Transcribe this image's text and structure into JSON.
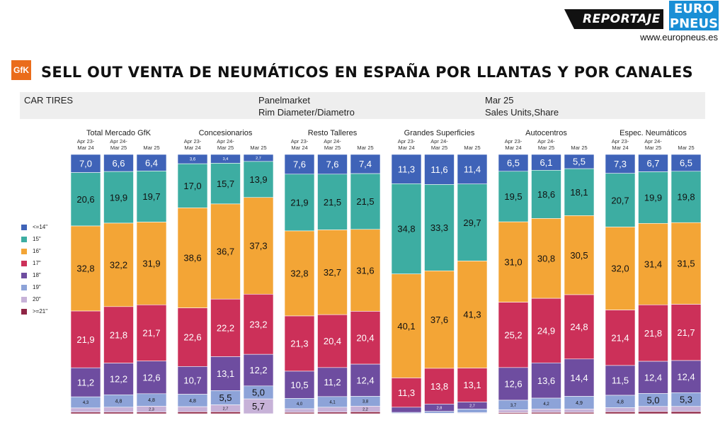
{
  "header": {
    "badge": "REPORTAJE",
    "logo_line1": "EURO",
    "logo_line2": "PNEUS",
    "site": "www.europneus.es",
    "gfk_logo": "GfK",
    "title": "SELL OUT VENTA DE NEUMÁTICOS EN ESPAÑA POR LLANTAS Y POR CANALES"
  },
  "info": {
    "left": "CAR TIRES",
    "mid1": "Panelmarket",
    "mid2": "Rim Diameter/Diametro",
    "right1": "Mar 25",
    "right2": "Sales Units,Share"
  },
  "colors": {
    "<=14\"": "#3f63b8",
    "15\"": "#3dada2",
    "16\"": "#f3a536",
    "17\"": "#cc3059",
    "18\"": "#6e4da0",
    "19\"": "#8da3d8",
    "20\"": "#c7b2d8",
    ">=21\"": "#8f2545"
  },
  "chart_data": {
    "type": "bar",
    "stacked": true,
    "normalized": true,
    "legend": [
      "<=14\"",
      "15\"",
      "16\"",
      "17\"",
      "18\"",
      "19\"",
      "20\"",
      ">=21\""
    ],
    "legend_position": "left",
    "groups": [
      {
        "name": "Total Mercado GfK",
        "periods": [
          "Apr 23-Mar 24",
          "Apr 24-Mar 25",
          "Mar 25"
        ],
        "values": [
          [
            7.0,
            20.6,
            32.8,
            21.9,
            11.2,
            4.3,
            1.6,
            0.6
          ],
          [
            6.6,
            19.9,
            32.2,
            21.8,
            12.2,
            4.8,
            1.9,
            0.6
          ],
          [
            6.4,
            19.7,
            31.9,
            21.7,
            12.6,
            4.8,
            2.3,
            0.6
          ]
        ],
        "labels": [
          [
            "7,0",
            "20,6",
            "32,8",
            "21,9",
            "11,2",
            "4,3",
            "",
            ""
          ],
          [
            "6,6",
            "19,9",
            "32,2",
            "21,8",
            "12,2",
            "4,8",
            "",
            ""
          ],
          [
            "6,4",
            "19,7",
            "31,9",
            "21,7",
            "12,6",
            "4,8",
            "2,3",
            ""
          ]
        ]
      },
      {
        "name": "Concesionarios",
        "periods": [
          "Apr 23-Mar 24",
          "Apr 24-Mar 25",
          "Mar 25"
        ],
        "values": [
          [
            3.6,
            17.0,
            38.6,
            22.6,
            10.7,
            4.8,
            2.0,
            0.7
          ],
          [
            3.4,
            15.7,
            36.7,
            22.2,
            13.1,
            5.5,
            2.7,
            0.7
          ],
          [
            2.7,
            13.9,
            37.3,
            23.2,
            12.2,
            5.0,
            5.7,
            0.0
          ]
        ],
        "labels": [
          [
            "3,6",
            "17,0",
            "38,6",
            "22,6",
            "10,7",
            "4,8",
            "",
            ""
          ],
          [
            "3,4",
            "15,7",
            "36,7",
            "22,2",
            "13,1",
            "5,5",
            "2,7",
            ""
          ],
          [
            "2,7",
            "13,9",
            "37,3",
            "23,2",
            "12,2",
            "5,0",
            "5,7",
            ""
          ]
        ]
      },
      {
        "name": "Resto Talleres",
        "periods": [
          "Apr 23-Mar 24",
          "Apr 24-Mar 25",
          "Mar 25"
        ],
        "values": [
          [
            7.6,
            21.9,
            32.8,
            21.3,
            10.5,
            4.0,
            1.4,
            0.5
          ],
          [
            7.6,
            21.5,
            32.7,
            20.4,
            11.2,
            4.1,
            1.9,
            0.6
          ],
          [
            7.4,
            21.5,
            31.6,
            20.4,
            12.4,
            3.8,
            2.2,
            0.7
          ]
        ],
        "labels": [
          [
            "7,6",
            "21,9",
            "32,8",
            "21,3",
            "10,5",
            "4,0",
            "",
            ""
          ],
          [
            "7,6",
            "21,5",
            "32,7",
            "20,4",
            "11,2",
            "4,1",
            "",
            ""
          ],
          [
            "7,4",
            "21,5",
            "31,6",
            "20,4",
            "12,4",
            "3,8",
            "2,2",
            ""
          ]
        ]
      },
      {
        "name": "Grandes Superficies",
        "periods": [
          "Apr 23-Mar 24",
          "Apr 24-Mar 25",
          "Mar 25"
        ],
        "values": [
          [
            11.3,
            34.8,
            40.1,
            11.3,
            2.0,
            0.4,
            0.1,
            0.0
          ],
          [
            11.6,
            33.3,
            37.6,
            13.8,
            2.8,
            0.7,
            0.2,
            0.0
          ],
          [
            11.4,
            29.7,
            41.3,
            13.1,
            2.7,
            1.4,
            0.3,
            0.1
          ]
        ],
        "labels": [
          [
            "11,3",
            "34,8",
            "40,1",
            "11,3",
            "",
            "",
            "",
            ""
          ],
          [
            "11,6",
            "33,3",
            "37,6",
            "13,8",
            "2,8",
            "",
            "",
            ""
          ],
          [
            "11,4",
            "29,7",
            "41,3",
            "13,1",
            "2,7",
            "",
            "",
            ""
          ]
        ]
      },
      {
        "name": "Autocentros",
        "periods": [
          "Apr 23-Mar 24",
          "Apr 24-Mar 25",
          "Mar 25"
        ],
        "values": [
          [
            6.5,
            19.5,
            31.0,
            25.2,
            12.6,
            3.7,
            1.1,
            0.4
          ],
          [
            6.1,
            18.6,
            30.8,
            24.9,
            13.6,
            4.2,
            1.3,
            0.5
          ],
          [
            5.5,
            18.1,
            30.5,
            24.8,
            14.4,
            4.9,
            1.3,
            0.5
          ]
        ],
        "labels": [
          [
            "6,5",
            "19,5",
            "31,0",
            "25,2",
            "12,6",
            "3,7",
            "",
            ""
          ],
          [
            "6,1",
            "18,6",
            "30,8",
            "24,9",
            "13,6",
            "4,2",
            "",
            ""
          ],
          [
            "5,5",
            "18,1",
            "30,5",
            "24,8",
            "14,4",
            "4,9",
            "",
            ""
          ]
        ]
      },
      {
        "name": "Espec. Neumáticos",
        "periods": [
          "Apr 23-Mar 24",
          "Apr 24-Mar 25",
          "Mar 25"
        ],
        "values": [
          [
            7.3,
            20.7,
            32.0,
            21.4,
            11.5,
            4.8,
            1.6,
            0.7
          ],
          [
            6.7,
            19.9,
            31.4,
            21.8,
            12.4,
            5.0,
            2.0,
            0.8
          ],
          [
            6.5,
            19.8,
            31.5,
            21.7,
            12.4,
            5.3,
            2.0,
            0.8
          ]
        ],
        "labels": [
          [
            "7,3",
            "20,7",
            "32,0",
            "21,4",
            "11,5",
            "4,8",
            "",
            ""
          ],
          [
            "6,7",
            "19,9",
            "31,4",
            "21,8",
            "12,4",
            "5,0",
            "",
            ""
          ],
          [
            "6,5",
            "19,8",
            "31,5",
            "21,7",
            "12,4",
            "5,3",
            "",
            ""
          ]
        ]
      }
    ]
  }
}
